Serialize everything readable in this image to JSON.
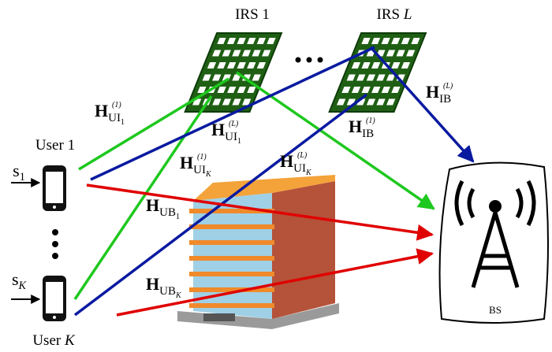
{
  "irs": [
    {
      "name": "IRS",
      "index": "1"
    },
    {
      "name": "IRS",
      "index": "L"
    }
  ],
  "users": [
    {
      "name": "User",
      "index": "1"
    },
    {
      "name": "User",
      "index": "K"
    }
  ],
  "signals": [
    {
      "name": "s",
      "index": "1"
    },
    {
      "name": "s",
      "index": "K"
    }
  ],
  "bs": {
    "label": "BS"
  },
  "channels": [
    {
      "base": "H",
      "sub": "UI",
      "index": "1",
      "sup": "(1)"
    },
    {
      "base": "H",
      "sub": "UI",
      "index": "1",
      "sup": "(L)"
    },
    {
      "base": "H",
      "sub": "UI",
      "index": "K",
      "sup": "(1)"
    },
    {
      "base": "H",
      "sub": "UI",
      "index": "K",
      "sup": "(L)"
    },
    {
      "base": "H",
      "sub": "UB",
      "index": "1"
    },
    {
      "base": "H",
      "sub": "UB",
      "index": "K"
    },
    {
      "base": "H",
      "sub": "IB",
      "sup": "(1)"
    },
    {
      "base": "H",
      "sub": "IB",
      "sup": "(L)"
    }
  ]
}
